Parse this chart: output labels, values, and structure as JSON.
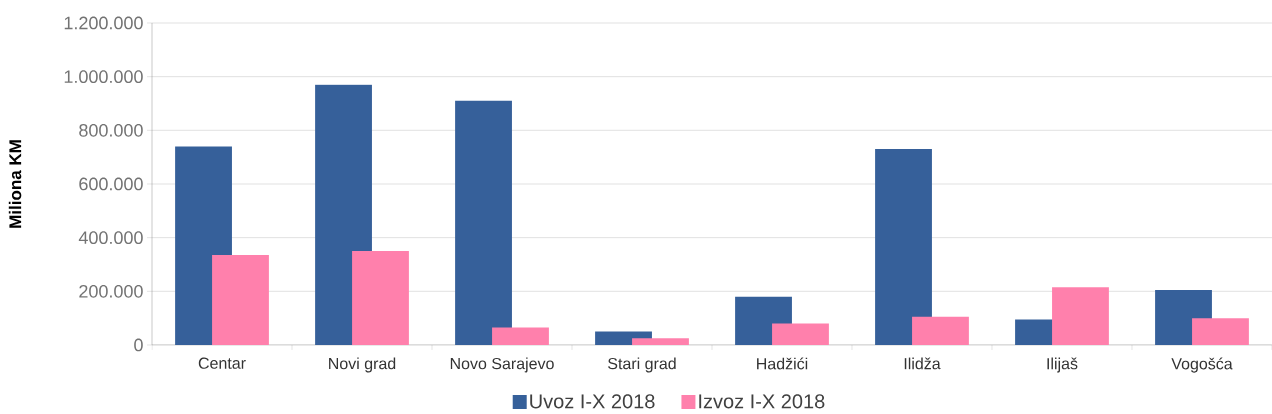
{
  "chart_data": {
    "type": "bar",
    "ylabel": "Miliona KM",
    "categories": [
      "Centar",
      "Novi grad",
      "Novo Sarajevo",
      "Stari grad",
      "Hadžići",
      "Ilidža",
      "Ilijaš",
      "Vogošća"
    ],
    "series": [
      {
        "name": "Uvoz I-X 2018",
        "color": "#36609a",
        "values": [
          740000,
          970000,
          910000,
          50000,
          180000,
          730000,
          95000,
          205000
        ]
      },
      {
        "name": "Izvoz I-X 2018",
        "color": "#ff80ac",
        "values": [
          335000,
          350000,
          65000,
          25000,
          80000,
          105000,
          215000,
          100000
        ]
      }
    ],
    "ylim": [
      0,
      1200000
    ],
    "yticks": [
      0,
      {
        "value": 200000,
        "label": "200.000"
      },
      {
        "value": 400000,
        "label": "400.000"
      },
      {
        "value": 600000,
        "label": "600.000"
      },
      {
        "value": 800000,
        "label": "800.000"
      },
      {
        "value": 1000000,
        "label": "1.000.000"
      },
      {
        "value": 1200000,
        "label": "1.200.000"
      }
    ],
    "grid": "y",
    "legend": "bottom"
  }
}
